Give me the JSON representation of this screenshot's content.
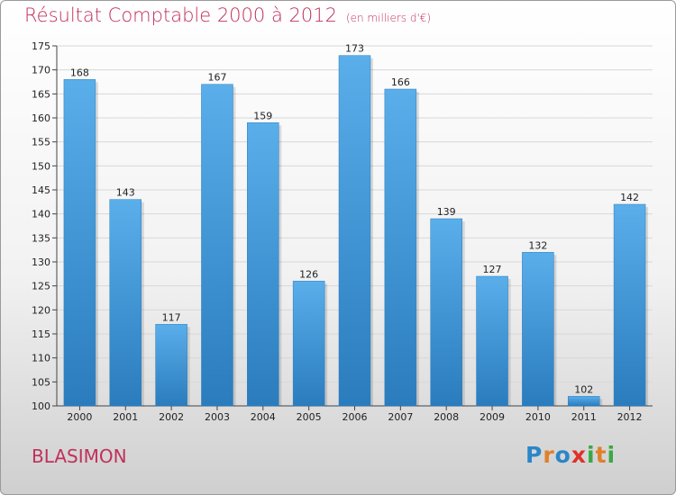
{
  "header": {
    "title": "Résultat Comptable 2000 à 2012",
    "subtitle": "(en milliers d'€)"
  },
  "footer": {
    "place": "BLASIMON",
    "logo": [
      "P",
      "r",
      "o",
      "x",
      "i",
      "t",
      "i"
    ]
  },
  "colors": {
    "title": "#c0315a",
    "bar_top": "#5aaeea",
    "bar_bottom": "#2a7cbd",
    "logo": [
      "#2a86c8",
      "#e0802a",
      "#2a86c8",
      "#e0302a",
      "#3aa844",
      "#e0802a",
      "#3aa844"
    ]
  },
  "chart_data": {
    "type": "bar",
    "title": "Résultat Comptable 2000 à 2012",
    "ylabel": "",
    "xlabel": "",
    "categories": [
      "2000",
      "2001",
      "2002",
      "2003",
      "2004",
      "2005",
      "2006",
      "2007",
      "2008",
      "2009",
      "2010",
      "2011",
      "2012"
    ],
    "values": [
      168,
      143,
      117,
      167,
      159,
      126,
      173,
      166,
      139,
      127,
      132,
      102,
      142
    ],
    "ylim": [
      100,
      175
    ],
    "yticks": [
      100,
      105,
      110,
      115,
      120,
      125,
      130,
      135,
      140,
      145,
      150,
      155,
      160,
      165,
      170,
      175
    ]
  }
}
